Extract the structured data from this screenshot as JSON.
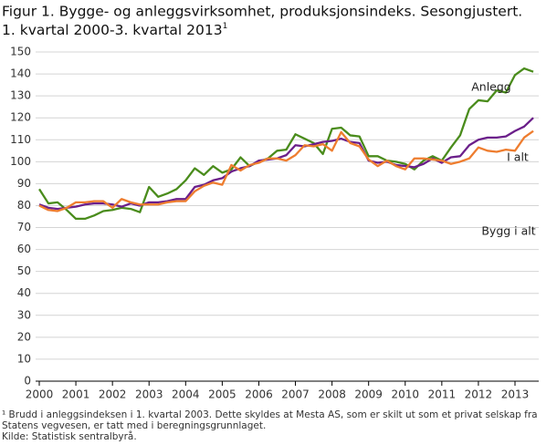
{
  "chart_data": {
    "type": "line",
    "title": [
      "Figur 1. Bygge- og anleggsvirksomhet, produksjonsindeks. Sesongjustert.",
      "1. kvartal 2000-3. kvartal 2013"
    ],
    "title_footnote_mark": "1",
    "categories": [
      "2000",
      null,
      null,
      null,
      "2001",
      null,
      null,
      null,
      "2002",
      null,
      null,
      null,
      "2003",
      null,
      null,
      null,
      "2004",
      null,
      null,
      null,
      "2005",
      null,
      null,
      null,
      "2006",
      null,
      null,
      null,
      "2007",
      null,
      null,
      null,
      "2008",
      null,
      null,
      null,
      "2009",
      null,
      null,
      null,
      "2010",
      null,
      null,
      null,
      "2011",
      null,
      null,
      null,
      "2012",
      null,
      null,
      null,
      "2013",
      null,
      null
    ],
    "series": [
      {
        "name": "Anlegg",
        "color": "#4a8c1c",
        "values": [
          87.5,
          81,
          81.5,
          78,
          74,
          74,
          75.5,
          77.5,
          78,
          79,
          78.5,
          77,
          88.5,
          84,
          85.5,
          87.5,
          91.5,
          97,
          94,
          98,
          95,
          96.5,
          102,
          98,
          100,
          101.5,
          105,
          105.5,
          112.5,
          110.5,
          108.5,
          103.5,
          115,
          115.5,
          112,
          111.5,
          102.5,
          102.5,
          100.5,
          100,
          99,
          96.5,
          100.5,
          102.5,
          100.5,
          106.5,
          112,
          124,
          128,
          127.5,
          132.5,
          131.5,
          139.5,
          142.5,
          141
        ]
      },
      {
        "name": "I alt",
        "color": "#6b1f8a",
        "values": [
          80.5,
          79,
          78.5,
          79,
          79.5,
          80.5,
          81,
          81,
          80.5,
          79.5,
          81,
          80,
          81.5,
          81.5,
          82,
          83,
          83,
          88.5,
          89.5,
          91.5,
          92.5,
          95.5,
          97,
          98,
          100.5,
          101,
          101.5,
          103,
          107.5,
          107,
          108,
          109,
          109.5,
          110.5,
          109,
          108.5,
          100.5,
          99.5,
          100,
          98.5,
          98,
          97.5,
          99,
          101.5,
          99.5,
          102,
          102.5,
          107.5,
          110,
          111,
          111,
          111.5,
          114,
          116,
          120
        ]
      },
      {
        "name": "Bygg i alt",
        "color": "#ee7d2f",
        "values": [
          80,
          78,
          77.5,
          79,
          81.5,
          81.5,
          82,
          82,
          79,
          83,
          81.5,
          80.5,
          80.5,
          80.5,
          81.5,
          82,
          82,
          86.5,
          89,
          90.5,
          89.5,
          98.5,
          96,
          98.5,
          99.5,
          101.5,
          101.5,
          100.5,
          103,
          107.5,
          107,
          108,
          105,
          113.5,
          108.5,
          107,
          101,
          98,
          100.5,
          98,
          96.5,
          101.5,
          101.5,
          101,
          100.5,
          99,
          100,
          101.5,
          106.5,
          105,
          104.5,
          105.5,
          105,
          111,
          114
        ]
      }
    ],
    "ylim": [
      0,
      150
    ],
    "yticks": [
      0,
      10,
      20,
      30,
      40,
      50,
      60,
      70,
      80,
      90,
      100,
      110,
      120,
      130,
      140,
      150
    ],
    "grid": true,
    "footnotes": [
      "¹ Brudd i anleggsindeksen i 1. kvartal 2003. Dette skyldes at Mesta AS, som er skilt ut som et privat selskap fra",
      "Statens vegvesen, er tatt med i beregningsgrunnlaget.",
      "Kilde: Statistisk sentralbyrå."
    ]
  }
}
